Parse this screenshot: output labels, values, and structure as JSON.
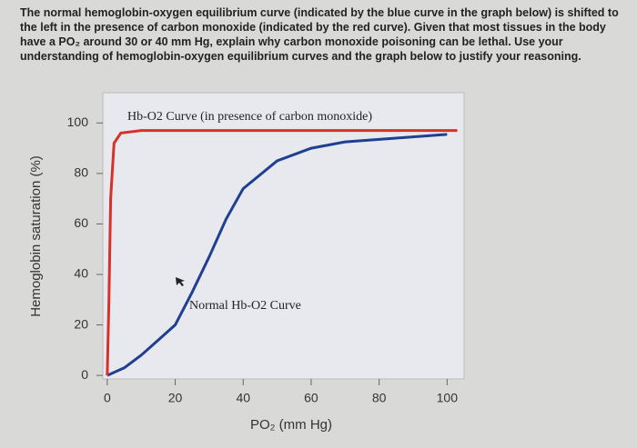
{
  "question": "The normal hemoglobin-oxygen equilibrium curve (indicated by the blue curve in the graph below) is shifted to the left in the presence of carbon monoxide (indicated by the red curve). Given that most tissues in the body have a PO₂ around 30 or 40 mm Hg, explain why carbon monoxide poisoning can be lethal. Use your understanding of hemoglobin-oxygen equilibrium curves and the graph below to justify your reasoning.",
  "chart_data": {
    "type": "line",
    "xlabel": "PO₂ (mm Hg)",
    "ylabel": "Hemoglobin saturation (%)",
    "annotations": [
      "Hb-O2 Curve (in presence of carbon monoxide)",
      "Normal Hb-O2 Curve"
    ],
    "xlim": [
      -1.3,
      105
    ],
    "ylim": [
      -1.4,
      112
    ],
    "xticks": [
      0,
      20,
      40,
      60,
      80,
      100
    ],
    "yticks": [
      0,
      20,
      40,
      60,
      80,
      100
    ],
    "series": [
      {
        "color": "#1f3f8f",
        "x": [
          0,
          5,
          10,
          15,
          20,
          25,
          30,
          35,
          40,
          50,
          60,
          70,
          80,
          90,
          100
        ],
        "values": [
          0,
          3,
          8,
          14,
          20,
          33,
          47,
          62,
          74,
          85,
          90,
          92.5,
          93.5,
          94.5,
          95.5
        ]
      },
      {
        "color": "#d6322a",
        "x": [
          0,
          0.5,
          1,
          2,
          4,
          10,
          20,
          40,
          60,
          80,
          100,
          103
        ],
        "values": [
          0,
          30,
          70,
          92,
          96,
          97,
          97,
          97,
          97,
          97,
          97,
          97
        ]
      }
    ]
  }
}
